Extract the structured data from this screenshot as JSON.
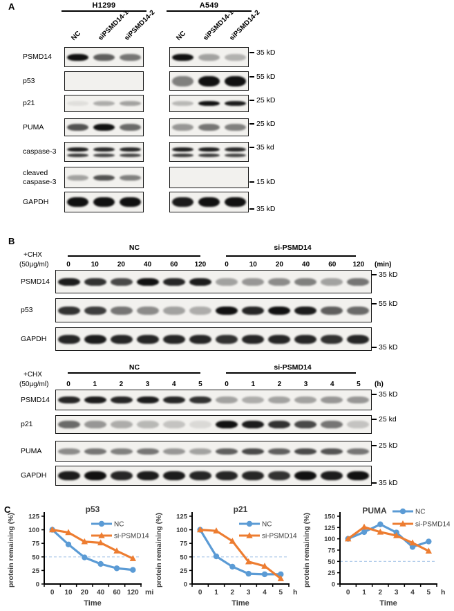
{
  "colors": {
    "nc_blue": "#5B9BD5",
    "si_orange": "#ED7D31",
    "ref_dash": "#A8C6E8",
    "band": "#111111"
  },
  "panel_a": {
    "label": "A",
    "groups": [
      {
        "cell_line": "H1299",
        "lane_labels": [
          "NC",
          "siPSMD14-1",
          "siPSMD14-2"
        ]
      },
      {
        "cell_line": "A549",
        "lane_labels": [
          "NC",
          "siPSMD14-1",
          "siPSMD14-2"
        ]
      }
    ],
    "rows": [
      {
        "label": "PSMD14",
        "marker": "35 kD",
        "bands": [
          [
            1,
            0.65,
            0.55
          ],
          [
            1,
            0.35,
            0.28
          ]
        ]
      },
      {
        "label": "p53",
        "marker": "55 kD",
        "bands": [
          [
            0,
            0,
            0
          ],
          [
            0.5,
            1,
            1
          ]
        ]
      },
      {
        "label": "p21",
        "marker": "25 kD",
        "bands": [
          [
            0.08,
            0.3,
            0.35
          ],
          [
            0.25,
            1,
            0.95
          ]
        ]
      },
      {
        "label": "PUMA",
        "marker": "25 kD",
        "bands": [
          [
            0.7,
            1,
            0.6
          ],
          [
            0.4,
            0.55,
            0.5
          ]
        ]
      },
      {
        "label": "caspase-3",
        "marker": "35 kd",
        "double": true,
        "bands": [
          [
            0.95,
            0.9,
            0.9
          ],
          [
            0.95,
            0.95,
            0.9
          ]
        ]
      },
      {
        "label": "cleaved caspase-3",
        "label_lines": [
          "cleaved",
          "caspase-3"
        ],
        "marker": "15 kD",
        "bands": [
          [
            0.35,
            0.7,
            0.5
          ],
          [
            0,
            0,
            0
          ]
        ]
      },
      {
        "label": "GAPDH",
        "marker": "35 kD",
        "bands": [
          [
            1,
            1,
            1
          ],
          [
            0.95,
            1,
            1
          ]
        ]
      }
    ]
  },
  "panel_b": {
    "label": "B",
    "blocks": [
      {
        "treatment": [
          "+CHX",
          "(50µg/ml)"
        ],
        "groups": [
          "NC",
          "si-PSMD14"
        ],
        "timepoints": [
          "0",
          "10",
          "20",
          "40",
          "60",
          "120"
        ],
        "unit": "(min)",
        "rows": [
          {
            "label": "PSMD14",
            "marker": "35 kD",
            "bands": [
              0.95,
              0.85,
              0.75,
              1,
              0.9,
              0.95,
              0.35,
              0.4,
              0.45,
              0.5,
              0.35,
              0.55
            ]
          },
          {
            "label": "p53",
            "marker": "55 kD",
            "bands": [
              0.85,
              0.8,
              0.55,
              0.45,
              0.35,
              0.3,
              1,
              0.9,
              1,
              0.95,
              0.65,
              0.6
            ]
          },
          {
            "label": "GAPDH",
            "marker": "35 kD",
            "bands": [
              0.9,
              0.95,
              0.9,
              0.9,
              0.9,
              0.9,
              0.85,
              0.9,
              0.9,
              0.9,
              0.85,
              0.9
            ]
          }
        ]
      },
      {
        "treatment": [
          "+CHX",
          "(50µg/ml)"
        ],
        "groups": [
          "NC",
          "si-PSMD14"
        ],
        "timepoints": [
          "0",
          "1",
          "2",
          "3",
          "4",
          "5"
        ],
        "unit": "(h)",
        "rows": [
          {
            "label": "PSMD14",
            "marker": "35 kD",
            "bands": [
              0.9,
              0.95,
              0.9,
              0.95,
              0.9,
              0.85,
              0.35,
              0.3,
              0.35,
              0.35,
              0.4,
              0.4
            ]
          },
          {
            "label": "p21",
            "marker": "25 kd",
            "bands": [
              0.6,
              0.4,
              0.3,
              0.25,
              0.2,
              0.1,
              1,
              0.95,
              0.85,
              0.75,
              0.55,
              0.2
            ]
          },
          {
            "label": "PUMA",
            "marker": "25 kD",
            "bands": [
              0.45,
              0.55,
              0.5,
              0.55,
              0.4,
              0.35,
              0.65,
              0.75,
              0.65,
              0.75,
              0.7,
              0.55
            ]
          },
          {
            "label": "GAPDH",
            "marker": "35 kD",
            "bands": [
              0.95,
              1,
              0.9,
              0.95,
              0.95,
              0.9,
              0.9,
              0.9,
              0.85,
              1,
              0.95,
              1
            ]
          }
        ]
      }
    ]
  },
  "panel_c": {
    "label": "C"
  },
  "chart_data": [
    {
      "type": "line",
      "title": "p53",
      "ylabel": "protein remaining (%)",
      "xlabel": "Time",
      "x_unit": "min",
      "categories": [
        "0",
        "10",
        "20",
        "40",
        "60",
        "120"
      ],
      "ylim": [
        0,
        125
      ],
      "ytick_step": 25,
      "ref_line": 50,
      "grid": false,
      "legend_position": "top-right",
      "series": [
        {
          "name": "NC",
          "color": "#5B9BD5",
          "marker": "circle",
          "values": [
            100,
            73,
            49,
            37,
            29,
            26
          ]
        },
        {
          "name": "si-PSMD14",
          "color": "#ED7D31",
          "marker": "triangle",
          "values": [
            100,
            95,
            78,
            76,
            61,
            47
          ]
        }
      ]
    },
    {
      "type": "line",
      "title": "p21",
      "ylabel": "protein remaining (%)",
      "xlabel": "Time",
      "x_unit": "h",
      "categories": [
        "0",
        "1",
        "2",
        "3",
        "4",
        "5"
      ],
      "ylim": [
        0,
        125
      ],
      "ytick_step": 25,
      "ref_line": 50,
      "grid": false,
      "legend_position": "top-right",
      "series": [
        {
          "name": "NC",
          "color": "#5B9BD5",
          "marker": "circle",
          "values": [
            100,
            51,
            32,
            19,
            18,
            18
          ]
        },
        {
          "name": "si-PSMD14",
          "color": "#ED7D31",
          "marker": "triangle",
          "values": [
            100,
            98,
            79,
            41,
            33,
            10
          ]
        }
      ]
    },
    {
      "type": "line",
      "title": "PUMA",
      "ylabel": "protein remaining (%)",
      "xlabel": "Time",
      "x_unit": "h",
      "categories": [
        "0",
        "1",
        "2",
        "3",
        "4",
        "5"
      ],
      "ylim": [
        0,
        150
      ],
      "ytick_step": 25,
      "ref_line": 50,
      "grid": false,
      "legend_position": "top-right",
      "series": [
        {
          "name": "NC",
          "color": "#5B9BD5",
          "marker": "circle",
          "values": [
            100,
            115,
            132,
            114,
            82,
            94
          ]
        },
        {
          "name": "si-PSMD14",
          "color": "#ED7D31",
          "marker": "triangle",
          "values": [
            100,
            126,
            115,
            107,
            91,
            73
          ]
        }
      ]
    }
  ]
}
